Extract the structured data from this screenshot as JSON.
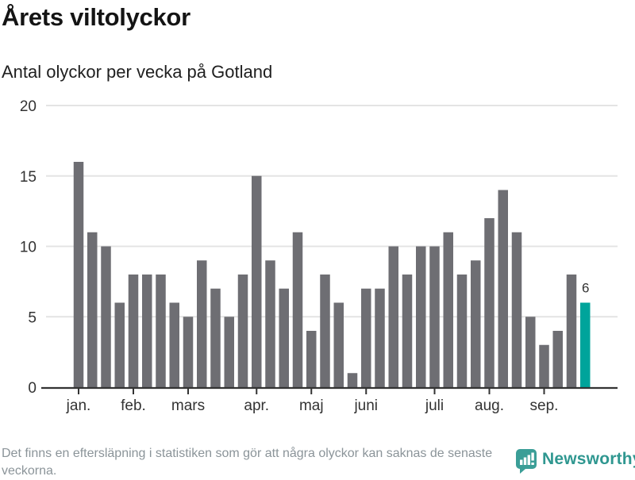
{
  "header": {
    "title": "Årets viltolyckor",
    "subtitle": "Antal olyckor per vecka på Gotland"
  },
  "footer": {
    "disclaimer": "Det finns en eftersläpning i statistiken som gör att några olyckor kan saknas de senaste veckorna.",
    "brand": "Newsworthy"
  },
  "colors": {
    "bar": "#6e6e73",
    "highlight": "#00a49b",
    "axis": "#333333",
    "grid": "#e4e4e4",
    "footnote_text": "#8b9499",
    "brand_teal": "#3b9e97"
  },
  "chart_data": {
    "type": "bar",
    "title": "Årets viltolyckor",
    "subtitle": "Antal olyckor per vecka på Gotland",
    "x_unit": "vecka",
    "values": [
      16,
      11,
      10,
      6,
      8,
      8,
      8,
      6,
      5,
      9,
      7,
      5,
      8,
      15,
      9,
      7,
      11,
      4,
      8,
      6,
      1,
      7,
      7,
      10,
      8,
      10,
      10,
      11,
      8,
      9,
      12,
      14,
      11,
      5,
      3,
      4,
      8,
      6
    ],
    "highlight_index": 37,
    "highlight_label": "6",
    "month_ticks": [
      {
        "label": "jan.",
        "index": 0
      },
      {
        "label": "feb.",
        "index": 4
      },
      {
        "label": "mars",
        "index": 8
      },
      {
        "label": "apr.",
        "index": 13
      },
      {
        "label": "maj",
        "index": 17
      },
      {
        "label": "juni",
        "index": 21
      },
      {
        "label": "juli",
        "index": 26
      },
      {
        "label": "aug.",
        "index": 30
      },
      {
        "label": "sep.",
        "index": 34
      }
    ],
    "y_ticks": [
      0,
      5,
      10,
      15,
      20
    ],
    "ylim": [
      0,
      20
    ],
    "grid": true,
    "legend": "none"
  }
}
